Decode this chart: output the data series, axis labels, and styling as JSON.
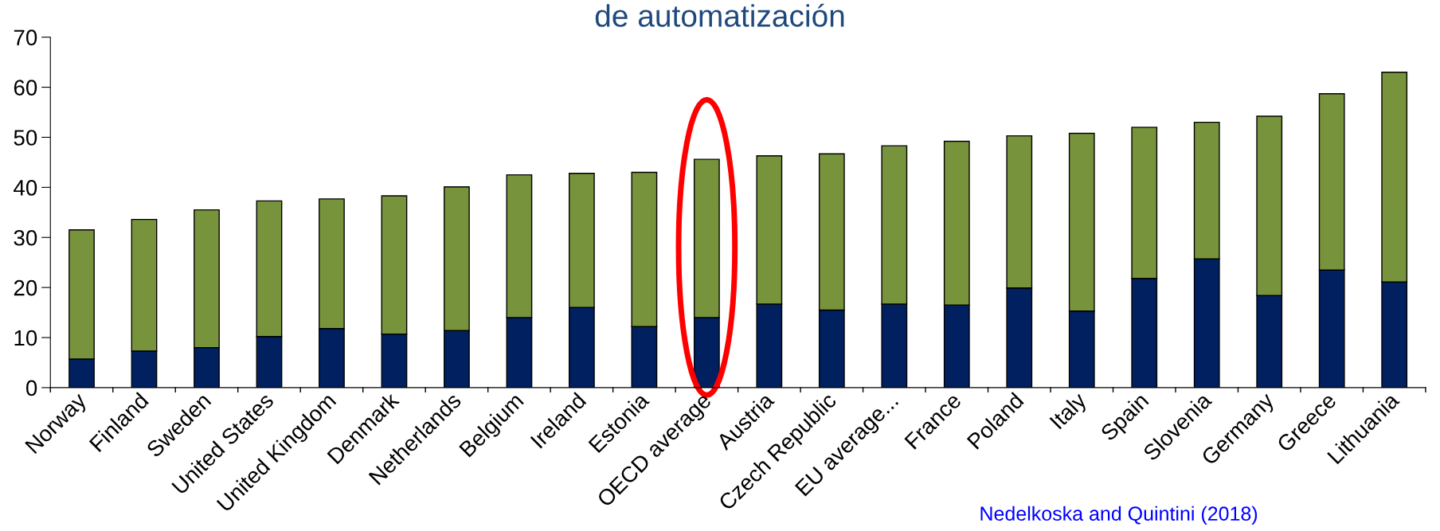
{
  "chart_data": {
    "type": "bar",
    "stacked": true,
    "title": "de automatización",
    "categories": [
      "Norway",
      "Finland",
      "Sweden",
      "United States",
      "United Kingdom",
      "Denmark",
      "Netherlands",
      "Belgium",
      "Ireland",
      "Estonia",
      "OECD average",
      "Austria",
      "Czech Republic",
      "EU average...",
      "France",
      "Poland",
      "Italy",
      "Spain",
      "Slovenia",
      "Germany",
      "Greece",
      "Lithuania"
    ],
    "series": [
      {
        "color": "#002060",
        "values": [
          5.7,
          7.3,
          8.0,
          10.2,
          11.8,
          10.7,
          11.4,
          14.0,
          16.0,
          12.2,
          14.0,
          16.7,
          15.5,
          16.7,
          16.5,
          19.9,
          15.3,
          21.8,
          25.7,
          18.4,
          23.5,
          21.1
        ]
      },
      {
        "color": "#77933c",
        "values": [
          25.8,
          26.3,
          27.5,
          27.1,
          25.9,
          27.6,
          28.7,
          28.5,
          26.8,
          30.8,
          31.6,
          29.6,
          31.2,
          31.6,
          32.7,
          30.4,
          35.5,
          30.2,
          27.3,
          35.8,
          35.2,
          41.9
        ]
      }
    ],
    "ylim": [
      0,
      70
    ],
    "yticks": [
      0,
      10,
      20,
      30,
      40,
      50,
      60,
      70
    ],
    "grid": false,
    "legend": false,
    "annotations": [
      "Nedelkoska and Quintini (2018)"
    ]
  }
}
